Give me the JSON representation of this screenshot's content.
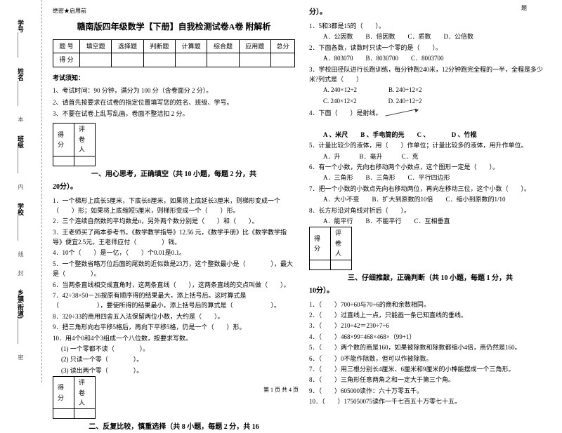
{
  "margin": {
    "items": [
      {
        "lbl": "学号",
        "line": "________"
      },
      {
        "lbl": "姓名",
        "line": "________"
      },
      {
        "lbl": "班级",
        "line": "________"
      },
      {
        "lbl": "学校",
        "line": "________"
      },
      {
        "lbl": "乡镇(街道)",
        "line": "________"
      }
    ],
    "dashed": [
      "本",
      "内",
      "线",
      "封",
      "密"
    ]
  },
  "header_small": "绝密★启用前",
  "title": "赣南版四年级数学【下册】自我检测试卷A卷 附解析",
  "top_label": "题",
  "score_table": {
    "row1": [
      "题  号",
      "填空题",
      "选择题",
      "判断题",
      "计算题",
      "综合题",
      "应用题",
      "总分"
    ],
    "row2": [
      "得  分",
      "",
      "",
      "",
      "",
      "",
      "",
      ""
    ]
  },
  "notice_title": "考试须知：",
  "notices": [
    "1、考试时间：90 分钟，满分为 100 分（含卷面分 2 分）。",
    "2、请首先按要求在试卷的指定位置填写您的姓名、班级、学号。",
    "3、不要在试卷上乱写乱画，卷面不整洁扣 2 分。"
  ],
  "eval": {
    "c1": "得分",
    "c2": "评卷人"
  },
  "sections": {
    "s1": {
      "title": "一、用心思考，正确填空（共 10 小题，每题 2 分，共",
      "intro": "20分）。"
    },
    "s2": {
      "title": "二、反复比较，慎重选择（共 8 小题，每题 2 分，共 16",
      "intro": "分）。"
    },
    "s3": {
      "title": "三、仔细推敲，正确判断（共 10 小题，每题 1 分，共",
      "intro": "10分）。"
    }
  },
  "q1": [
    "1．一个梯形上底长5厘米，下底长8厘米，如果将上底延长3厘米，则梯形变成一个（　　）形；如果将上底缩短5厘米，则梯形变成一个（　　）形。",
    "2．三个连续自然数的平均数是n，另外两个数分别是（　　）和（　　）。",
    "3．王老师买了两本参考书。《数学教学指导》12.56 元，《数学手册》比《数学教学指导》便宜2.5元。王老师应付（　　　　）钱。",
    "4．10个（　　）是一亿，（　　）个0.01是0.1。",
    "5．一个整数省略万位后面的尾数的近似数是23万，这个整数最小是（　　　　），最大是（　　　　）。",
    "",
    "6．当两条直线相交成直角时，这两条直线（　　），这两条直线的交点叫做（　　）。",
    "7．42÷38×50－26按原有顺序得的结果最大，添上括号后。这时算式是（　　　　　　），要使所得的结果最小，添上括号后的算式是（　　　　　　）。",
    "8．320÷33的商用四舍五入法保留两位小数，大约是（　　）。",
    "9．把三角形向右平移5格后，再向下平移5格，仍是一个（　　）形。",
    "10．用4个0和4个3组成一个八位数，按要求写数。"
  ],
  "q1sub": [
    "(1) 一个零都不读（　　　　）。",
    "(2) 只读一个零（　　　　）。",
    "(3) 读出两个零（　　　　）。"
  ],
  "q2": [
    "1．5和3都是15的（　　）。",
    "2．下面各数，读数时只读一个零的是（　　）。",
    "3．学校田径队进行长跑训练，每分钟跑240米，12分钟跑完全程的一半，全程是多少米?列式是（　　）",
    "4．下面（　　）是射线。"
  ],
  "q2o": {
    "o1": "A．公因数　　B．倍因数　　C．质数　　D．公倍数",
    "o2": "A．803070　　B．8030700　　C．8003700",
    "o3a": "A. 240×12÷2　　　　　B. 240÷12×2",
    "o3b": "C. 240×12×2　　　　　D. 240÷12÷2",
    "o4": "A 、米尺　　B 、手电筒的光　　C 、　　　　D 、竹棍"
  },
  "q2b": [
    "5．计量比较少的液体，用（　　）作单位；计量比较多的液体，用升作单位。",
    "6．有一个小数，先向右移动两个小数点，这个图形一定是（　　）。",
    "7．把一个小数的小数点先向右移动两位，再向左移动三位，这个小数（　　）。",
    "8．长方形沿对角线对折后（　　）。"
  ],
  "q2bo": {
    "o5": "A．升　　　B．毫升　　　C．克",
    "o6": "A．三角形　　B．三角形　　C．平行四边形",
    "o7": "A．大小不变　　B．扩大到原数的10倍　　C．缩小到原数的1/10",
    "o8": "A．能平行　　B．不能平行　　C．互相垂直"
  },
  "q3": [
    "1．（　　）700÷60与70÷6的商和余数相同。",
    "2．（　　）过直线上一点，只能画一条已知直线的垂线。",
    "3．（　　）210÷42＝230÷7÷6",
    "4．（　　）468×99=468×468×（99+1）",
    "5．（　　）两个数的商是160，如果被除数和除数都缩小4倍，商仍然是160。",
    "6．（　　）0不能作除数，但可以作被除数。",
    "7．（　　）用三根分别长4厘米、6厘米和9厘米的小棒能摆成一个三角形。",
    "8．（　　）三角形任意两角之和一定大于第三个角。",
    "9．（　　）605000读作：六十万零五千。",
    "10．（　　）175050075读作一千七百五十万零七十五。"
  ],
  "footer": "第 1 页 共 4 页"
}
